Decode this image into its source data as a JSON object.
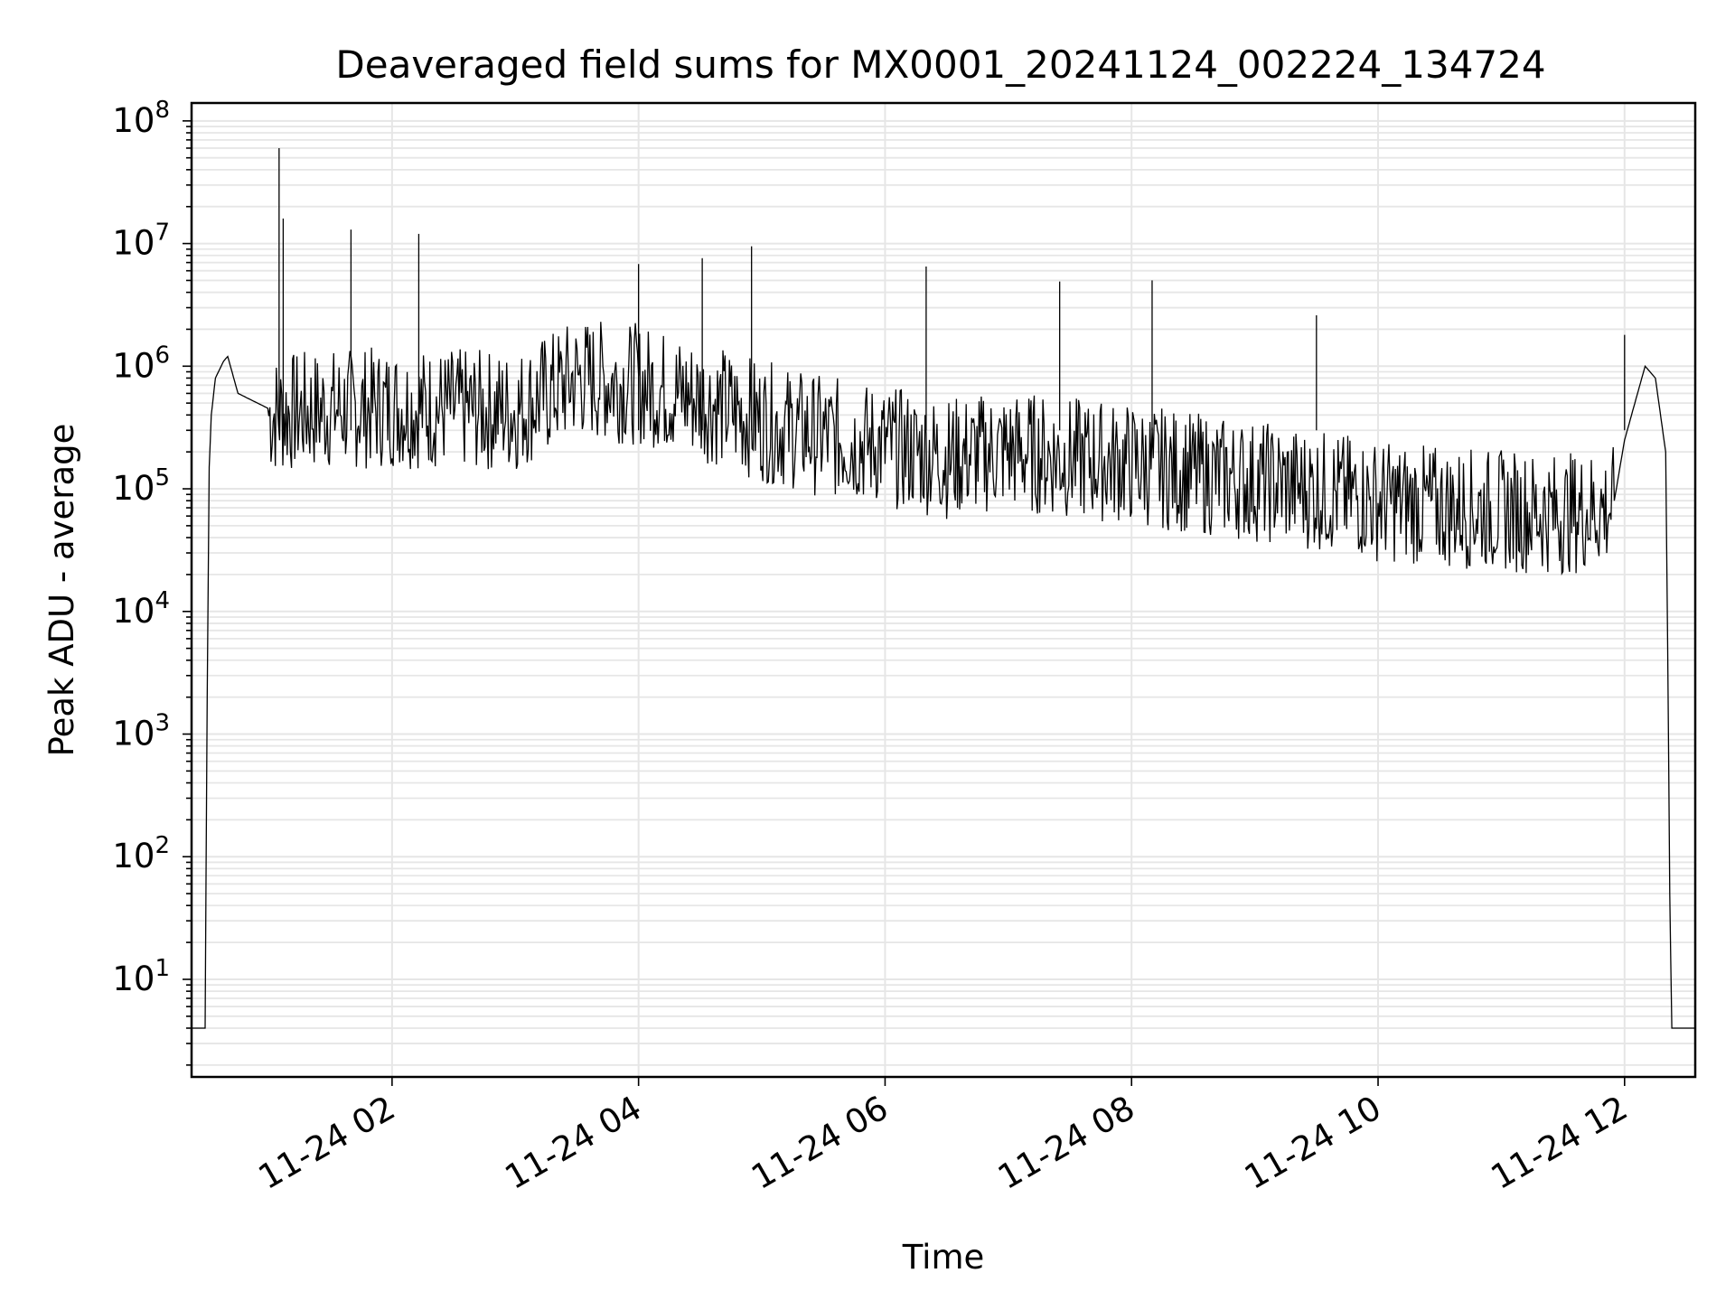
{
  "chart_data": {
    "type": "line",
    "title": "Deaveraged field sums for MX0001_20241124_002224_134724",
    "xlabel": "Time",
    "ylabel": "Peak ADU - average",
    "yscale": "log",
    "ylim": [
      1.6,
      140000000
    ],
    "xlim": [
      "2024-11-24 00:22:24",
      "2024-11-24 12:34:24"
    ],
    "grid": "on",
    "line_color": "#000000",
    "x_ticks": [
      {
        "value": "2024-11-24 02:00",
        "label": "11-24 02"
      },
      {
        "value": "2024-11-24 04:00",
        "label": "11-24 04"
      },
      {
        "value": "2024-11-24 06:00",
        "label": "11-24 06"
      },
      {
        "value": "2024-11-24 08:00",
        "label": "11-24 08"
      },
      {
        "value": "2024-11-24 10:00",
        "label": "11-24 10"
      },
      {
        "value": "2024-11-24 12:00",
        "label": "11-24 12"
      }
    ],
    "y_ticks": [
      {
        "value": 10,
        "base": "10",
        "exp": "1"
      },
      {
        "value": 100,
        "base": "10",
        "exp": "2"
      },
      {
        "value": 1000,
        "base": "10",
        "exp": "3"
      },
      {
        "value": 10000,
        "base": "10",
        "exp": "4"
      },
      {
        "value": 100000,
        "base": "10",
        "exp": "5"
      },
      {
        "value": 1000000,
        "base": "10",
        "exp": "6"
      },
      {
        "value": 10000000,
        "base": "10",
        "exp": "7"
      },
      {
        "value": 100000000,
        "base": "10",
        "exp": "8"
      }
    ],
    "series": [
      {
        "x": [
          "2024-11-24 00:22",
          "2024-11-24 00:29",
          "2024-11-24 00:30",
          "2024-11-24 00:31",
          "2024-11-24 00:32",
          "2024-11-24 00:34",
          "2024-11-24 00:38",
          "2024-11-24 00:40",
          "2024-11-24 00:45",
          "2024-11-24 01:00",
          "2024-11-24 01:30",
          "2024-11-24 02:00",
          "2024-11-24 02:30",
          "2024-11-24 03:00",
          "2024-11-24 03:30",
          "2024-11-24 04:00",
          "2024-11-24 04:30",
          "2024-11-24 05:00",
          "2024-11-24 05:30",
          "2024-11-24 06:00",
          "2024-11-24 06:30",
          "2024-11-24 07:00",
          "2024-11-24 07:30",
          "2024-11-24 08:00",
          "2024-11-24 08:30",
          "2024-11-24 09:00",
          "2024-11-24 09:30",
          "2024-11-24 10:00",
          "2024-11-24 10:30",
          "2024-11-24 11:00",
          "2024-11-24 11:30",
          "2024-11-24 11:55",
          "2024-11-24 12:00",
          "2024-11-24 12:05",
          "2024-11-24 12:10",
          "2024-11-24 12:15",
          "2024-11-24 12:20",
          "2024-11-24 12:21",
          "2024-11-24 12:22",
          "2024-11-24 12:23",
          "2024-11-24 12:34"
        ],
        "y": [
          4,
          4,
          2000,
          150000,
          400000,
          800000,
          1100000,
          1200000,
          600000,
          450000,
          500000,
          520000,
          500000,
          480000,
          900000,
          800000,
          600000,
          400000,
          300000,
          250000,
          200000,
          230000,
          200000,
          180000,
          150000,
          130000,
          110000,
          90000,
          80000,
          75000,
          70000,
          80000,
          250000,
          500000,
          1000000,
          800000,
          200000,
          5000,
          50,
          4,
          4
        ]
      }
    ],
    "spikes": [
      {
        "x": "2024-11-24 01:05",
        "y": 60000000
      },
      {
        "x": "2024-11-24 01:07",
        "y": 16000000
      },
      {
        "x": "2024-11-24 01:40",
        "y": 13000000
      },
      {
        "x": "2024-11-24 02:13",
        "y": 12000000
      },
      {
        "x": "2024-11-24 04:55",
        "y": 9500000
      },
      {
        "x": "2024-11-24 04:00",
        "y": 6800000
      },
      {
        "x": "2024-11-24 04:31",
        "y": 7600000
      },
      {
        "x": "2024-11-24 06:20",
        "y": 6500000
      },
      {
        "x": "2024-11-24 07:25",
        "y": 4900000
      },
      {
        "x": "2024-11-24 08:10",
        "y": 5000000
      },
      {
        "x": "2024-11-24 09:30",
        "y": 2600000
      },
      {
        "x": "2024-11-24 12:00",
        "y": 1800000
      }
    ]
  }
}
